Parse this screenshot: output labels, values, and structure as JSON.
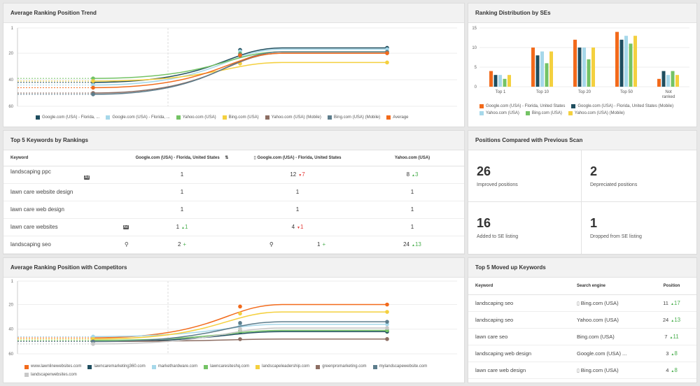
{
  "trend": {
    "title": "Average Ranking Position Trend",
    "y_ticks": [
      "1",
      "20",
      "40",
      "60"
    ],
    "legend": [
      {
        "label": "Google.com (USA) - Florida, ...",
        "color": "#1f4e5f"
      },
      {
        "label": "Google.com (USA) - Florida, ...",
        "color": "#a6d8ea"
      },
      {
        "label": "Yahoo.com (USA)",
        "color": "#74c365"
      },
      {
        "label": "Bing.com (USA)",
        "color": "#f4d03f"
      },
      {
        "label": "Yahoo.com (USA) (Mobile)",
        "color": "#8d6e63"
      },
      {
        "label": "Bing.com (USA) (Mobile)",
        "color": "#5d7d8c"
      },
      {
        "label": "Average",
        "color": "#f26a1b"
      }
    ]
  },
  "distribution": {
    "title": "Ranking Distribution by SEs",
    "legend": [
      {
        "label": "Google.com (USA) - Florida, United States",
        "color": "#f26a1b"
      },
      {
        "label": "Google.com (USA) - Florida, United States (Mobile)",
        "color": "#1f4e5f"
      },
      {
        "label": "Yahoo.com (USA)",
        "color": "#a6d8ea"
      },
      {
        "label": "Bing.com (USA)",
        "color": "#74c365"
      },
      {
        "label": "Yahoo.com (USA) (Mobile)",
        "color": "#f4d03f"
      }
    ]
  },
  "top5": {
    "title": "Top 5 Keywords by Rankings",
    "col_keyword": "Keyword",
    "col_google": "Google.com (USA) - Florida, United States",
    "col_google_mobile": "Google.com (USA) - Florida, United States",
    "col_yahoo": "Yahoo.com (USA)",
    "rows": [
      {
        "keyword": "landscaping ppc",
        "g": "1",
        "gm": "12",
        "gm_change": "7",
        "gm_dir": "down",
        "y": "8",
        "y_change": "3",
        "y_dir": "up",
        "marker": "ad"
      },
      {
        "keyword": "lawn care website design",
        "g": "1",
        "gm": "1",
        "gm_change": "",
        "gm_dir": "",
        "y": "1",
        "y_change": "",
        "y_dir": "",
        "marker": ""
      },
      {
        "keyword": "lawn care web design",
        "g": "1",
        "gm": "1",
        "gm_change": "",
        "gm_dir": "",
        "y": "1",
        "y_change": "",
        "y_dir": "",
        "marker": ""
      },
      {
        "keyword": "lawn care websites",
        "g": "1",
        "g_change": "1",
        "g_dir": "up",
        "gm": "4",
        "gm_change": "1",
        "gm_dir": "down",
        "y": "1",
        "y_change": "",
        "y_dir": "",
        "marker": "ad"
      },
      {
        "keyword": "landscaping seo",
        "g": "2",
        "g_plus": "+",
        "gm": "1",
        "gm_plus": "+",
        "y": "24",
        "y_change": "13",
        "y_dir": "up",
        "marker": "pin"
      }
    ]
  },
  "compare": {
    "title": "Positions Compared with Previous Scan",
    "tiles": [
      {
        "value": "26",
        "label": "Improved positions"
      },
      {
        "value": "2",
        "label": "Depreciated positions"
      },
      {
        "value": "16",
        "label": "Added to SE listing"
      },
      {
        "value": "1",
        "label": "Dropped from SE listing"
      }
    ]
  },
  "competitors": {
    "title": "Average Ranking Position with Competitors",
    "y_ticks": [
      "1",
      "20",
      "40",
      "60"
    ],
    "legend": [
      {
        "label": "www.lawnlinewebsites.com",
        "color": "#f26a1b"
      },
      {
        "label": "lawncaremarketing360.com",
        "color": "#1f4e5f"
      },
      {
        "label": "markethardware.com",
        "color": "#a6d8ea"
      },
      {
        "label": "lawncaresiteshq.com",
        "color": "#74c365"
      },
      {
        "label": "landscapeleadership.com",
        "color": "#f4d03f"
      },
      {
        "label": "greenpromarketing.com",
        "color": "#8d6e63"
      },
      {
        "label": "mylandscapewebsite.com",
        "color": "#5d7d8c"
      },
      {
        "label": "landscaperwebsites.com",
        "color": "#c8c8c8"
      }
    ]
  },
  "moved": {
    "title": "Top 5 Moved up Keywords",
    "col_keyword": "Keyword",
    "col_engine": "Search engine",
    "col_position": "Position",
    "rows": [
      {
        "keyword": "landscaping seo",
        "engine": "Bing.com (USA)",
        "mobile": true,
        "position": "11",
        "change": "17"
      },
      {
        "keyword": "landscaping seo",
        "engine": "Yahoo.com (USA)",
        "mobile": false,
        "position": "24",
        "change": "13"
      },
      {
        "keyword": "lawn care seo",
        "engine": "Bing.com (USA)",
        "mobile": false,
        "position": "7",
        "change": "11"
      },
      {
        "keyword": "landscaping web design",
        "engine": "Google.com (USA) ...",
        "mobile": false,
        "position": "3",
        "change": "8"
      },
      {
        "keyword": "lawn care web design",
        "engine": "Bing.com (USA)",
        "mobile": true,
        "position": "4",
        "change": "8"
      }
    ]
  },
  "chart_data": [
    {
      "type": "line",
      "title": "Average Ranking Position Trend",
      "ylim": [
        1,
        60
      ],
      "y_reversed": true,
      "series": [
        {
          "name": "Google.com (USA) - Florida, ...",
          "start": 42,
          "end": 16
        },
        {
          "name": "Google.com (USA) - Florida, ...",
          "start": 44,
          "end": 17
        },
        {
          "name": "Yahoo.com (USA)",
          "start": 39,
          "end": 19
        },
        {
          "name": "Bing.com (USA)",
          "start": 41,
          "end": 27
        },
        {
          "name": "Yahoo.com (USA) (Mobile)",
          "start": 50,
          "end": 20
        },
        {
          "name": "Bing.com (USA) (Mobile)",
          "start": 51,
          "end": 19
        },
        {
          "name": "Average",
          "start": 46,
          "end": 20
        }
      ]
    },
    {
      "type": "bar",
      "title": "Ranking Distribution by SEs",
      "categories": [
        "Top 1",
        "Top 10",
        "Top 20",
        "Top 50",
        "Not ranked"
      ],
      "ylim": [
        0,
        15
      ],
      "series": [
        {
          "name": "Google.com (USA) - Florida, United States",
          "values": [
            4,
            10,
            12,
            14,
            2
          ]
        },
        {
          "name": "Google.com (USA) - Florida, United States (Mobile)",
          "values": [
            3,
            8,
            10,
            12,
            4
          ]
        },
        {
          "name": "Yahoo.com (USA)",
          "values": [
            3,
            9,
            10,
            13,
            3
          ]
        },
        {
          "name": "Bing.com (USA)",
          "values": [
            2,
            6,
            7,
            11,
            4
          ]
        },
        {
          "name": "Yahoo.com (USA) (Mobile)",
          "values": [
            3,
            9,
            10,
            13,
            3
          ]
        }
      ]
    },
    {
      "type": "line",
      "title": "Average Ranking Position with Competitors",
      "ylim": [
        1,
        60
      ],
      "y_reversed": true,
      "series": [
        {
          "name": "www.lawnlinewebsites.com",
          "start": 47,
          "end": 20
        },
        {
          "name": "lawncaremarketing360.com",
          "start": 50,
          "end": 42
        },
        {
          "name": "markethardware.com",
          "start": 46,
          "end": 36
        },
        {
          "name": "lawncaresiteshq.com",
          "start": 49,
          "end": 41
        },
        {
          "name": "landscapeleadership.com",
          "start": 48,
          "end": 26
        },
        {
          "name": "greenpromarketing.com",
          "start": 50,
          "end": 48
        },
        {
          "name": "mylandscapewebsite.com",
          "start": 50,
          "end": 34
        },
        {
          "name": "landscaperwebsites.com",
          "start": 52,
          "end": 39
        }
      ]
    }
  ]
}
